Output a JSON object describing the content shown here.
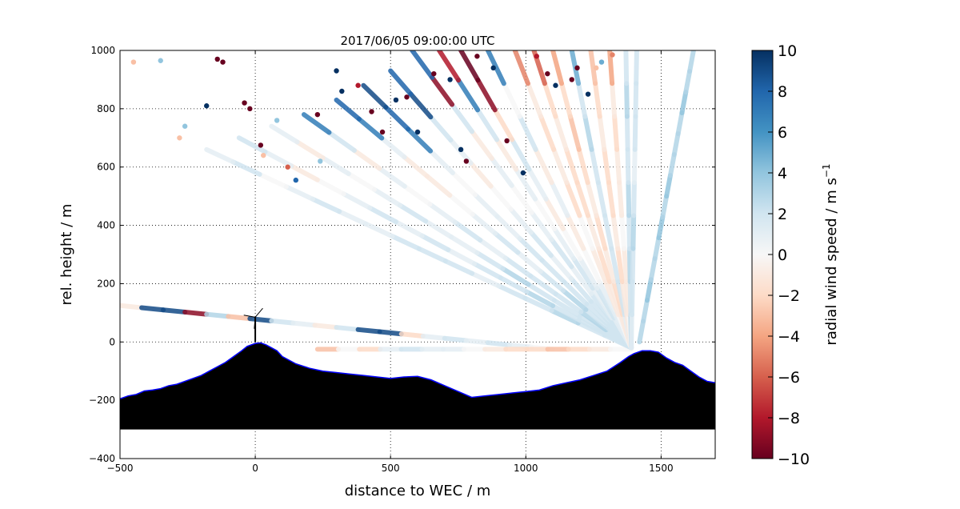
{
  "chart_data": {
    "type": "scatter",
    "title": "2017/06/05 09:00:00 UTC",
    "xlabel": "distance to WEC / m",
    "ylabel": "rel. height / m",
    "xlim": [
      -500,
      1700
    ],
    "ylim": [
      -400,
      1000
    ],
    "xticks": [
      -500,
      0,
      500,
      1000,
      1500
    ],
    "xtick_labels": [
      "−500",
      "0",
      "500",
      "1000",
      "1500"
    ],
    "yticks": [
      -400,
      -200,
      0,
      200,
      400,
      600,
      800,
      1000
    ],
    "ytick_labels": [
      "−400",
      "−200",
      "0",
      "200",
      "400",
      "600",
      "800",
      "1000"
    ],
    "grid": true,
    "colorbar": {
      "label": "radial wind speed / m s",
      "label_superscript": "−1",
      "range": [
        -10,
        10
      ],
      "ticks": [
        10,
        8,
        6,
        4,
        2,
        0,
        -2,
        -4,
        -6,
        -8,
        -10
      ],
      "tick_labels": [
        "10",
        "8",
        "6",
        "4",
        "2",
        "0",
        "−2",
        "−4",
        "−6",
        "−8",
        "−10"
      ],
      "colormap": "RdBu",
      "colors": [
        "#67001f",
        "#b2182b",
        "#d6604d",
        "#f4a582",
        "#fddbc7",
        "#f7f7f7",
        "#d1e5f0",
        "#92c5de",
        "#4393c3",
        "#2166ac",
        "#053061"
      ]
    },
    "lidar_position": [
      1390,
      -20
    ],
    "turbine": {
      "x": 0,
      "base": 0,
      "hub_height": 85,
      "rotor_radius": 40
    },
    "terrain": {
      "fill_color": "#000000",
      "edge_color": "#0000ff",
      "bottom": -300,
      "x": [
        -500,
        -470,
        -440,
        -410,
        -380,
        -350,
        -320,
        -290,
        -260,
        -230,
        -200,
        -170,
        -140,
        -110,
        -80,
        -50,
        -30,
        0,
        20,
        40,
        60,
        80,
        100,
        150,
        200,
        250,
        300,
        350,
        400,
        450,
        500,
        550,
        600,
        650,
        700,
        750,
        800,
        850,
        900,
        950,
        1000,
        1050,
        1100,
        1150,
        1200,
        1250,
        1300,
        1350,
        1380,
        1400,
        1430,
        1460,
        1490,
        1520,
        1550,
        1580,
        1610,
        1640,
        1670,
        1700
      ],
      "y": [
        -195,
        -185,
        -180,
        -168,
        -165,
        -160,
        -150,
        -145,
        -135,
        -125,
        -115,
        -100,
        -85,
        -70,
        -50,
        -30,
        -15,
        -5,
        -3,
        -10,
        -20,
        -30,
        -50,
        -75,
        -90,
        -100,
        -105,
        -110,
        -115,
        -120,
        -125,
        -120,
        -118,
        -130,
        -150,
        -170,
        -190,
        -185,
        -180,
        -175,
        -170,
        -165,
        -150,
        -140,
        -130,
        -115,
        -100,
        -70,
        -50,
        -40,
        -30,
        -30,
        -35,
        -55,
        -70,
        -80,
        -100,
        -120,
        -135,
        -140
      ]
    },
    "series": [
      {
        "name": "low-beam-west",
        "from": [
          -500,
          125
        ],
        "to": [
          1100,
          -25
        ],
        "values": [
          -1,
          9,
          9,
          -9,
          3,
          -3,
          9,
          2,
          1,
          -1,
          2,
          9,
          9,
          -2,
          1,
          2,
          1,
          2,
          1,
          0
        ]
      },
      {
        "name": "low-beam-horizontal",
        "from": [
          230,
          -25
        ],
        "to": [
          1390,
          -25
        ],
        "values": [
          -3,
          0,
          -2,
          1,
          2,
          1,
          1,
          0,
          -1,
          -2,
          -2,
          -3,
          -2,
          -1,
          0
        ]
      },
      {
        "name": "vertical-beam",
        "from": [
          1420,
          0
        ],
        "to": [
          1620,
          1000
        ],
        "values": [
          3,
          3,
          4,
          3,
          3,
          4,
          3,
          4,
          3,
          3,
          3,
          4,
          3,
          3
        ]
      },
      {
        "name": "ray-1",
        "from": [
          1390,
          -20
        ],
        "to": [
          -180,
          660
        ],
        "values": [
          2,
          2,
          3,
          2,
          2,
          1,
          2,
          2,
          2,
          1,
          1,
          2,
          1,
          0,
          2,
          1
        ]
      },
      {
        "name": "ray-2",
        "from": [
          1390,
          -20
        ],
        "to": [
          -60,
          700
        ],
        "values": [
          2,
          2,
          2,
          3,
          2,
          2,
          1,
          2,
          1,
          2,
          1,
          0,
          -1,
          1,
          2
        ]
      },
      {
        "name": "ray-3",
        "from": [
          1390,
          -20
        ],
        "to": [
          60,
          740
        ],
        "values": [
          2,
          2,
          2,
          2,
          3,
          2,
          1,
          1,
          2,
          1,
          0,
          1,
          -1,
          1
        ]
      },
      {
        "name": "ray-4",
        "from": [
          1390,
          -20
        ],
        "to": [
          180,
          780
        ],
        "values": [
          2,
          3,
          2,
          2,
          2,
          1,
          2,
          1,
          0,
          1,
          -1,
          2,
          7
        ]
      },
      {
        "name": "ray-5",
        "from": [
          1390,
          -20
        ],
        "to": [
          300,
          830
        ],
        "values": [
          2,
          2,
          3,
          2,
          1,
          2,
          1,
          0,
          -1,
          -1,
          1,
          7,
          8
        ]
      },
      {
        "name": "ray-6",
        "from": [
          1390,
          -20
        ],
        "to": [
          400,
          880
        ],
        "values": [
          2,
          2,
          2,
          2,
          2,
          1,
          1,
          0,
          1,
          7,
          8,
          9
        ]
      },
      {
        "name": "ray-7",
        "from": [
          1390,
          -20
        ],
        "to": [
          500,
          930
        ],
        "values": [
          2,
          2,
          2,
          1,
          2,
          1,
          0,
          -1,
          1,
          2,
          9,
          8
        ]
      },
      {
        "name": "ray-8",
        "from": [
          1390,
          -20
        ],
        "to": [
          580,
          1000
        ],
        "values": [
          2,
          2,
          1,
          2,
          1,
          0,
          1,
          -1,
          2,
          -9,
          8
        ]
      },
      {
        "name": "ray-9",
        "from": [
          1390,
          -20
        ],
        "to": [
          680,
          1000
        ],
        "values": [
          2,
          1,
          2,
          1,
          0,
          1,
          -1,
          2,
          7,
          -8
        ]
      },
      {
        "name": "ray-10",
        "from": [
          1390,
          -20
        ],
        "to": [
          760,
          1000
        ],
        "values": [
          1,
          2,
          1,
          0,
          -1,
          1,
          2,
          -2,
          -9,
          -10
        ]
      },
      {
        "name": "ray-11",
        "from": [
          1390,
          -20
        ],
        "to": [
          860,
          1000
        ],
        "values": [
          1,
          1,
          0,
          -1,
          1,
          -1,
          2,
          0,
          7
        ]
      },
      {
        "name": "ray-12",
        "from": [
          1390,
          -20
        ],
        "to": [
          960,
          1000
        ],
        "values": [
          0,
          -1,
          -1,
          0,
          -2,
          -1,
          -2,
          -1,
          -5
        ]
      },
      {
        "name": "ray-13",
        "from": [
          1390,
          -20
        ],
        "to": [
          1030,
          1000
        ],
        "values": [
          -1,
          -1,
          -2,
          -1,
          -2,
          -2,
          -1,
          -2,
          -6
        ]
      },
      {
        "name": "ray-14",
        "from": [
          1390,
          -20
        ],
        "to": [
          1100,
          1000
        ],
        "values": [
          -1,
          -2,
          -1,
          -2,
          -1,
          -2,
          -3,
          -2,
          -4
        ]
      },
      {
        "name": "ray-15",
        "from": [
          1390,
          -20
        ],
        "to": [
          1170,
          1000
        ],
        "values": [
          1,
          2,
          2,
          2,
          2,
          2,
          3,
          2,
          5
        ]
      },
      {
        "name": "ray-16",
        "from": [
          1390,
          -20
        ],
        "to": [
          1240,
          1000
        ],
        "values": [
          -1,
          -1,
          -2,
          -1,
          -2,
          -2,
          -1,
          -2,
          -3
        ]
      },
      {
        "name": "ray-17",
        "from": [
          1390,
          -20
        ],
        "to": [
          1310,
          1000
        ],
        "values": [
          0,
          -1,
          -1,
          0,
          -1,
          -1,
          -2,
          -1,
          -4
        ]
      },
      {
        "name": "ray-18",
        "from": [
          1390,
          -20
        ],
        "to": [
          1370,
          1000
        ],
        "values": [
          3,
          2,
          3,
          2,
          3,
          2,
          2,
          3,
          2
        ]
      },
      {
        "name": "ray-19",
        "from": [
          1390,
          -20
        ],
        "to": [
          1410,
          1000
        ],
        "values": [
          1,
          2,
          2,
          3,
          2,
          1,
          2,
          2,
          2
        ]
      }
    ],
    "scattered_points": [
      {
        "x": -450,
        "y": 960,
        "v": -3
      },
      {
        "x": -350,
        "y": 965,
        "v": 4
      },
      {
        "x": -140,
        "y": 970,
        "v": -10
      },
      {
        "x": -120,
        "y": 960,
        "v": -10
      },
      {
        "x": -180,
        "y": 810,
        "v": 10
      },
      {
        "x": -260,
        "y": 740,
        "v": 4
      },
      {
        "x": -280,
        "y": 700,
        "v": -3
      },
      {
        "x": -40,
        "y": 820,
        "v": -10
      },
      {
        "x": -20,
        "y": 800,
        "v": -10
      },
      {
        "x": 20,
        "y": 675,
        "v": -10
      },
      {
        "x": 30,
        "y": 640,
        "v": -3
      },
      {
        "x": 80,
        "y": 760,
        "v": 4
      },
      {
        "x": 150,
        "y": 555,
        "v": 8
      },
      {
        "x": 120,
        "y": 600,
        "v": -6
      },
      {
        "x": 230,
        "y": 780,
        "v": -10
      },
      {
        "x": 240,
        "y": 620,
        "v": 4
      },
      {
        "x": 300,
        "y": 930,
        "v": 10
      },
      {
        "x": 320,
        "y": 860,
        "v": 10
      },
      {
        "x": 380,
        "y": 880,
        "v": -8
      },
      {
        "x": 430,
        "y": 790,
        "v": -10
      },
      {
        "x": 470,
        "y": 720,
        "v": -10
      },
      {
        "x": 520,
        "y": 830,
        "v": 10
      },
      {
        "x": 560,
        "y": 840,
        "v": -10
      },
      {
        "x": 600,
        "y": 720,
        "v": 10
      },
      {
        "x": 660,
        "y": 920,
        "v": -10
      },
      {
        "x": 720,
        "y": 900,
        "v": 10
      },
      {
        "x": 760,
        "y": 660,
        "v": 10
      },
      {
        "x": 780,
        "y": 620,
        "v": -10
      },
      {
        "x": 820,
        "y": 980,
        "v": -10
      },
      {
        "x": 880,
        "y": 940,
        "v": 10
      },
      {
        "x": 930,
        "y": 690,
        "v": -10
      },
      {
        "x": 990,
        "y": 580,
        "v": 10
      },
      {
        "x": 1040,
        "y": 980,
        "v": -8
      },
      {
        "x": 1080,
        "y": 920,
        "v": -10
      },
      {
        "x": 1110,
        "y": 880,
        "v": 10
      },
      {
        "x": 1170,
        "y": 900,
        "v": -10
      },
      {
        "x": 1190,
        "y": 940,
        "v": -10
      },
      {
        "x": 1230,
        "y": 850,
        "v": 10
      },
      {
        "x": 1260,
        "y": 940,
        "v": -3
      },
      {
        "x": 1280,
        "y": 960,
        "v": 5
      },
      {
        "x": 1320,
        "y": 985,
        "v": -5
      }
    ]
  }
}
